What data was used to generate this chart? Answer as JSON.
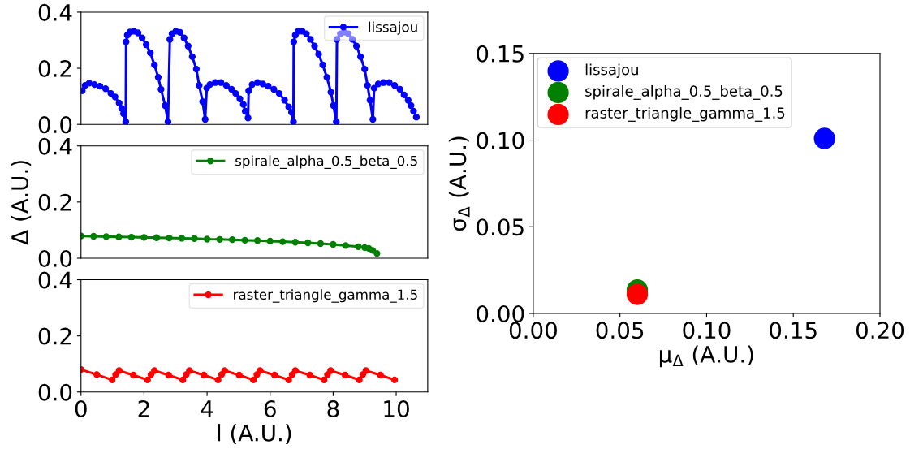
{
  "chart_data": [
    {
      "type": "line",
      "xlim": [
        0,
        11
      ],
      "ylim": [
        0,
        0.4
      ],
      "yticks": [
        {
          "value": 0,
          "label": "0.0"
        },
        {
          "value": 0.2,
          "label": "0.2"
        },
        {
          "value": 0.4,
          "label": "0.4"
        }
      ],
      "tick_labels": "y",
      "legend": "top right",
      "marker": "circle",
      "line_style": "solid",
      "grid": false,
      "series": [
        {
          "name": "lissajou",
          "color": "#0000ff",
          "x": [
            0.04,
            0.13,
            0.26,
            0.43,
            0.6,
            0.78,
            0.95,
            1.08,
            1.21,
            1.29,
            1.35,
            1.42,
            1.43,
            1.47,
            1.55,
            1.68,
            1.81,
            1.94,
            2.07,
            2.2,
            2.33,
            2.45,
            2.54,
            2.67,
            2.76,
            2.82,
            2.89,
            3.01,
            3.14,
            3.27,
            3.4,
            3.53,
            3.66,
            3.75,
            3.86,
            3.94,
            3.99,
            4.09,
            4.26,
            4.44,
            4.61,
            4.78,
            4.91,
            5.04,
            5.15,
            5.21,
            5.3,
            5.32,
            5.43,
            5.6,
            5.77,
            5.94,
            6.12,
            6.29,
            6.46,
            6.59,
            6.68,
            6.74,
            6.75,
            6.8,
            6.89,
            7.02,
            7.15,
            7.28,
            7.41,
            7.54,
            7.67,
            7.8,
            7.93,
            8.01,
            8.1,
            8.12,
            8.23,
            8.35,
            8.48,
            8.61,
            8.74,
            8.87,
            9.0,
            9.09,
            9.17,
            9.26,
            9.3,
            9.43,
            9.6,
            9.78,
            9.95,
            10.12,
            10.25,
            10.38,
            10.47,
            10.55,
            10.64
          ],
          "values": [
            0.12,
            0.139,
            0.147,
            0.142,
            0.136,
            0.127,
            0.11,
            0.098,
            0.076,
            0.057,
            0.038,
            0.009,
            0.294,
            0.318,
            0.329,
            0.332,
            0.326,
            0.308,
            0.284,
            0.255,
            0.212,
            0.168,
            0.125,
            0.067,
            0.009,
            0.303,
            0.323,
            0.332,
            0.328,
            0.308,
            0.279,
            0.241,
            0.197,
            0.139,
            0.081,
            0.018,
            0.129,
            0.142,
            0.149,
            0.149,
            0.139,
            0.125,
            0.11,
            0.091,
            0.071,
            0.047,
            0.023,
            0.12,
            0.142,
            0.149,
            0.144,
            0.136,
            0.125,
            0.11,
            0.086,
            0.062,
            0.043,
            0.009,
            0.294,
            0.318,
            0.332,
            0.332,
            0.323,
            0.303,
            0.279,
            0.25,
            0.212,
            0.168,
            0.115,
            0.067,
            0.009,
            0.303,
            0.323,
            0.329,
            0.323,
            0.303,
            0.279,
            0.241,
            0.197,
            0.139,
            0.086,
            0.018,
            0.129,
            0.144,
            0.149,
            0.149,
            0.139,
            0.125,
            0.105,
            0.086,
            0.067,
            0.047,
            0.026
          ]
        }
      ]
    },
    {
      "type": "line",
      "xlim": [
        0,
        11
      ],
      "ylim": [
        0,
        0.4
      ],
      "yticks": [
        {
          "value": 0,
          "label": "0.0"
        },
        {
          "value": 0.2,
          "label": "0.2"
        },
        {
          "value": 0.4,
          "label": "0.4"
        }
      ],
      "tick_labels": "y",
      "legend": "top right",
      "marker": "circle",
      "line_style": "solid",
      "grid": false,
      "ylabel": "Δ (A.U.)",
      "series": [
        {
          "name": "spirale_alpha_0.5_beta_0.5",
          "color": "#008000",
          "x": [
            0,
            0.4,
            0.8,
            1.2,
            1.6,
            2.0,
            2.4,
            2.8,
            3.2,
            3.6,
            4.0,
            4.4,
            4.8,
            5.2,
            5.6,
            6.0,
            6.4,
            6.8,
            7.2,
            7.6,
            8.0,
            8.4,
            8.8,
            9.0,
            9.13,
            9.25,
            9.39
          ],
          "values": [
            0.079,
            0.078,
            0.077,
            0.076,
            0.075,
            0.074,
            0.073,
            0.072,
            0.071,
            0.07,
            0.068,
            0.067,
            0.066,
            0.064,
            0.063,
            0.061,
            0.059,
            0.057,
            0.055,
            0.052,
            0.049,
            0.045,
            0.041,
            0.038,
            0.035,
            0.028,
            0.017
          ]
        }
      ]
    },
    {
      "type": "line",
      "xlim": [
        0,
        11
      ],
      "ylim": [
        0,
        0.4
      ],
      "yticks": [
        {
          "value": 0,
          "label": "0.0"
        },
        {
          "value": 0.2,
          "label": "0.2"
        },
        {
          "value": 0.4,
          "label": "0.4"
        }
      ],
      "xticks": [
        0,
        2,
        4,
        6,
        8,
        10
      ],
      "legend": "top right",
      "marker": "circle",
      "line_style": "solid",
      "grid": false,
      "xlabel": "l (A.U.)",
      "series": [
        {
          "name": "raster_triangle_gamma_1.5",
          "color": "#ff0000",
          "x": [
            0,
            0.5,
            0.99,
            1.1,
            1.21,
            1.66,
            2.11,
            2.22,
            2.33,
            2.78,
            3.23,
            3.34,
            3.44,
            3.9,
            4.35,
            4.46,
            4.56,
            5.02,
            5.47,
            5.58,
            5.68,
            6.14,
            6.59,
            6.7,
            6.8,
            7.26,
            7.71,
            7.82,
            7.92,
            8.38,
            8.83,
            8.94,
            9.04,
            9.5,
            9.95
          ],
          "values": [
            0.08,
            0.062,
            0.043,
            0.062,
            0.076,
            0.06,
            0.043,
            0.062,
            0.076,
            0.06,
            0.043,
            0.062,
            0.076,
            0.06,
            0.043,
            0.062,
            0.076,
            0.06,
            0.043,
            0.062,
            0.076,
            0.06,
            0.043,
            0.062,
            0.076,
            0.06,
            0.043,
            0.062,
            0.076,
            0.06,
            0.043,
            0.062,
            0.076,
            0.06,
            0.043
          ]
        }
      ]
    },
    {
      "type": "scatter",
      "xlim": [
        0,
        0.2
      ],
      "ylim": [
        0,
        0.15
      ],
      "xticks": [
        {
          "value": 0,
          "label": "0.00"
        },
        {
          "value": 0.05,
          "label": "0.05"
        },
        {
          "value": 0.1,
          "label": "0.10"
        },
        {
          "value": 0.15,
          "label": "0.15"
        },
        {
          "value": 0.2,
          "label": "0.20"
        }
      ],
      "yticks": [
        {
          "value": 0,
          "label": "0.00"
        },
        {
          "value": 0.05,
          "label": "0.05"
        },
        {
          "value": 0.1,
          "label": "0.10"
        },
        {
          "value": 0.15,
          "label": "0.15"
        }
      ],
      "legend": "top left",
      "marker": "circle",
      "grid": false,
      "xlabel": "μ$_{Δ}$ (A.U.)",
      "ylabel": "σ$_{Δ}$ (A.U.)",
      "series": [
        {
          "name": "lissajou",
          "color": "#0000ff",
          "x": [
            0.168
          ],
          "values": [
            0.101
          ]
        },
        {
          "name": "spirale_alpha_0.5_beta_0.5",
          "color": "#008000",
          "x": [
            0.06
          ],
          "values": [
            0.0135
          ]
        },
        {
          "name": "raster_triangle_gamma_1.5",
          "color": "#ff0000",
          "x": [
            0.06
          ],
          "values": [
            0.011
          ]
        }
      ]
    }
  ]
}
